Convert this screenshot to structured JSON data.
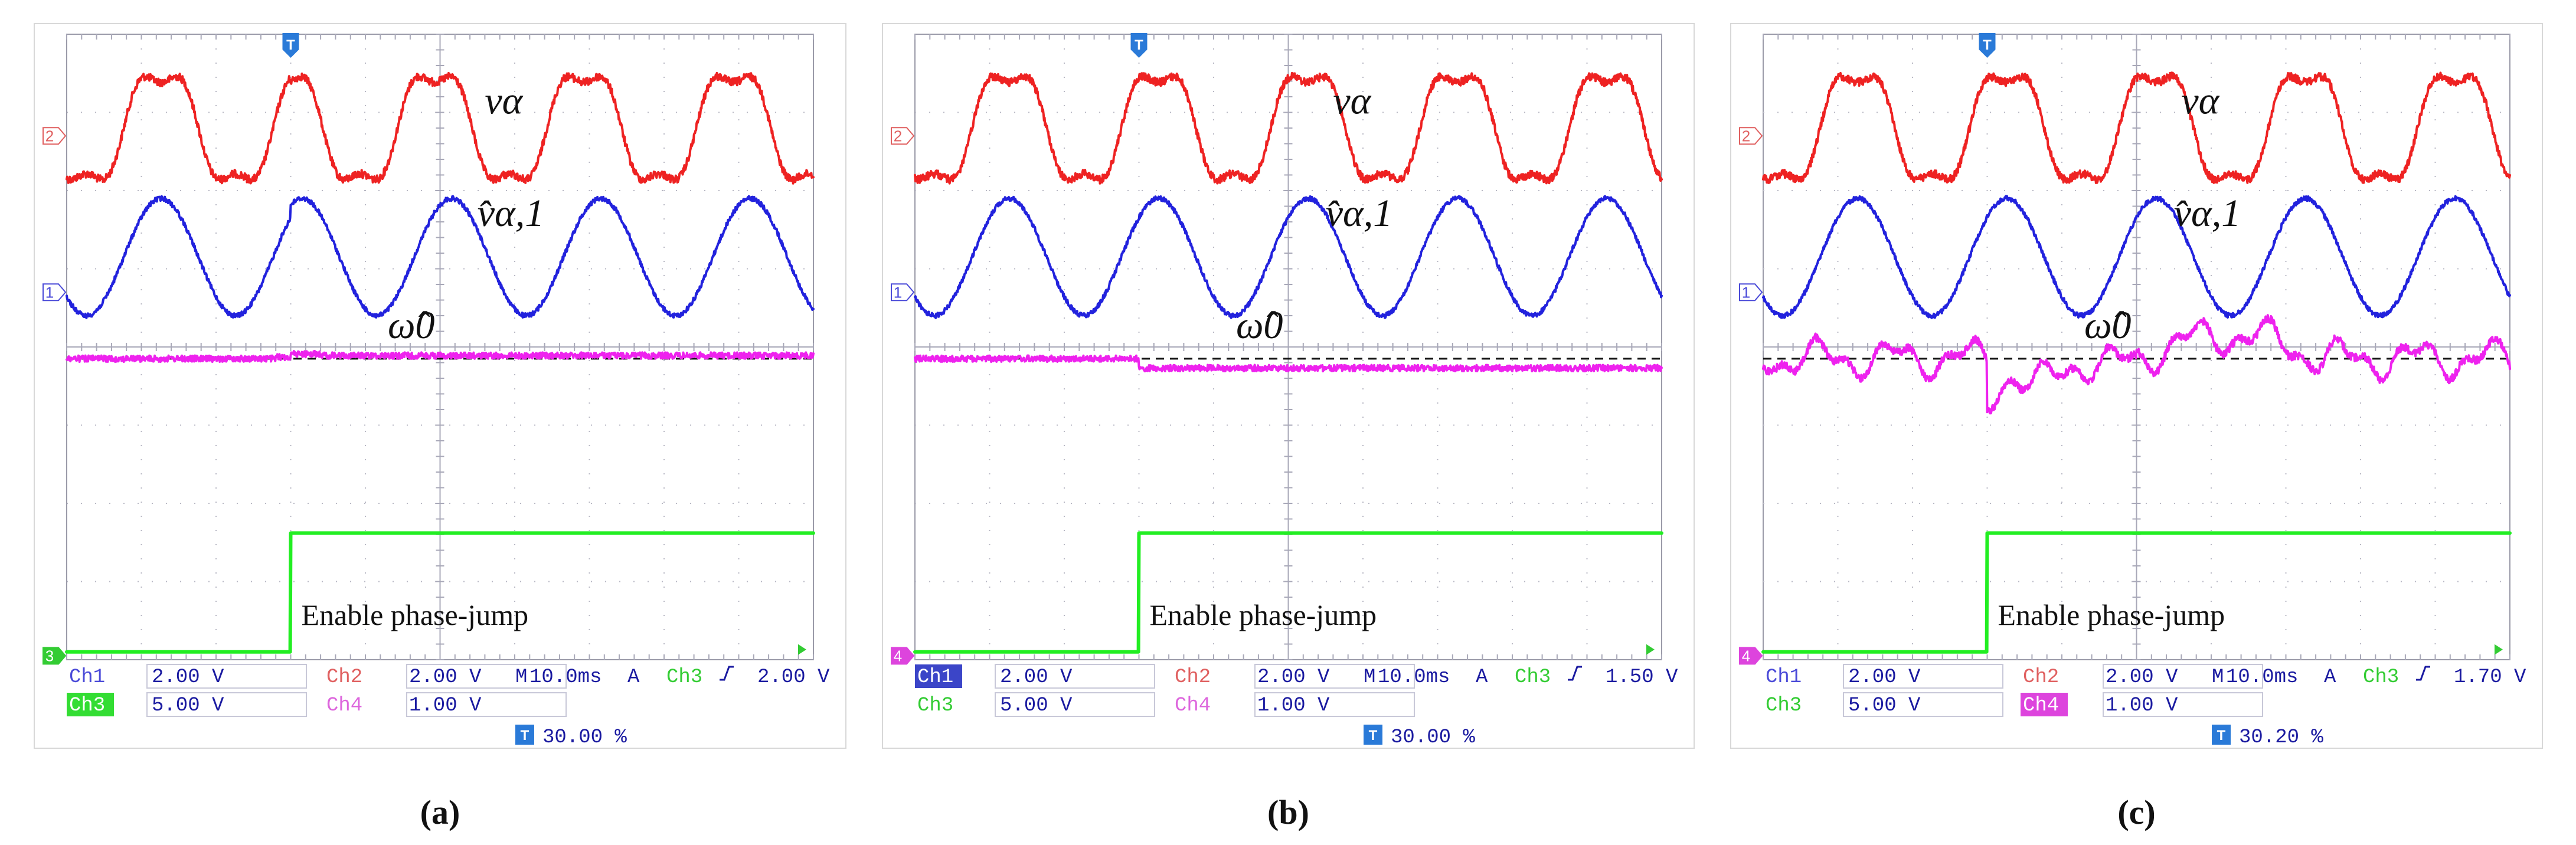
{
  "figure": {
    "panel_count": 3
  },
  "chart_data": [
    {
      "type": "line",
      "panel_label": "(a)",
      "annotations": {
        "v_alpha": "vα",
        "v_hat": "v̂α,1",
        "omega": "ω̂0",
        "event": "Enable phase-jump"
      },
      "markers": {
        "ch2": "2",
        "ch1": "1",
        "bottom": "3",
        "trigger": "T"
      },
      "status": {
        "row1": [
          {
            "label": "Ch1",
            "value": "2.00 V",
            "label_color": "#4a4ad8",
            "highlight": false
          },
          {
            "label": "Ch2",
            "value": "2.00 V",
            "label_color": "#e06060",
            "highlight": false
          },
          {
            "label": "M",
            "value": "10.0ms"
          },
          {
            "label": "A",
            "value": "Ch3",
            "edge": "rising",
            "level": "2.00 V"
          }
        ],
        "row2": [
          {
            "label": "Ch3",
            "value": "5.00 V",
            "label_color": "#ffffff",
            "label_bg": "#33dd33",
            "highlight": true
          },
          {
            "label": "Ch4",
            "value": "1.00 V",
            "label_color": "#dd66dd",
            "highlight": false
          }
        ],
        "trigger_position": "30.00 %"
      },
      "time": {
        "div_ms": 10,
        "divisions": 10,
        "phase_jump_div": 3.0
      },
      "series": [
        {
          "name": "v_alpha",
          "channel": "Ch2",
          "color": "#ee2222",
          "waveform": "flattop",
          "freq_cycles": 5,
          "amplitude_div": 0.75,
          "center_div": 1.2,
          "jump_deg": 60,
          "noise_div": 0.05
        },
        {
          "name": "v_hat_alpha_1",
          "channel": "Ch1",
          "color": "#2222dd",
          "waveform": "sine",
          "freq_cycles": 5,
          "amplitude_div": 0.75,
          "center_div": 2.85,
          "jump_deg": 20,
          "noise_div": 0.03
        },
        {
          "name": "omega_hat_0",
          "channel": "Ch4",
          "color": "#ee22ee",
          "waveform": "dc",
          "level_div": 4.15,
          "shift_div": -0.04,
          "dip_div": 0.02,
          "noise_div": 0.04
        },
        {
          "name": "enable_phase_jump",
          "channel": "Ch3",
          "color": "#22ee22",
          "waveform": "step",
          "low_div": 7.9,
          "high_div": 6.38
        }
      ],
      "reference_level_div": 4.15
    },
    {
      "type": "line",
      "panel_label": "(b)",
      "annotations": {
        "v_alpha": "vα",
        "v_hat": "v̂α,1",
        "omega": "ω̂0",
        "event": "Enable phase-jump"
      },
      "markers": {
        "ch2": "2",
        "ch1": "1",
        "bottom": "4",
        "trigger": "T"
      },
      "status": {
        "row1": [
          {
            "label": "Ch1",
            "value": "2.00 V",
            "label_color": "#ffffff",
            "label_bg": "#3b45c8",
            "highlight": true
          },
          {
            "label": "Ch2",
            "value": "2.00 V",
            "label_color": "#e06060",
            "highlight": false
          },
          {
            "label": "M",
            "value": "10.0ms"
          },
          {
            "label": "A",
            "value": "Ch3",
            "edge": "rising",
            "level": "1.50 V"
          }
        ],
        "row2": [
          {
            "label": "Ch3",
            "value": "5.00 V",
            "label_color": "#33cc33",
            "highlight": false
          },
          {
            "label": "Ch4",
            "value": "1.00 V",
            "label_color": "#dd66dd",
            "highlight": false
          }
        ],
        "trigger_position": "30.00 %"
      },
      "time": {
        "div_ms": 10,
        "divisions": 10,
        "phase_jump_div": 3.0
      },
      "series": [
        {
          "name": "v_alpha",
          "channel": "Ch2",
          "color": "#ee2222",
          "waveform": "flattop",
          "freq_cycles": 5,
          "amplitude_div": 0.75,
          "center_div": 1.2,
          "jump_deg": 0,
          "noise_div": 0.05
        },
        {
          "name": "v_hat_alpha_1",
          "channel": "Ch1",
          "color": "#2222dd",
          "waveform": "sine",
          "freq_cycles": 5,
          "amplitude_div": 0.75,
          "center_div": 2.85,
          "jump_deg": 0,
          "noise_div": 0.03
        },
        {
          "name": "omega_hat_0",
          "channel": "Ch4",
          "color": "#ee22ee",
          "waveform": "dc",
          "level_div": 4.15,
          "shift_div": 0.12,
          "dip_div": 0.0,
          "noise_div": 0.04
        },
        {
          "name": "enable_phase_jump",
          "channel": "Ch3",
          "color": "#22ee22",
          "waveform": "step",
          "low_div": 7.9,
          "high_div": 6.38
        }
      ],
      "reference_level_div": 4.15
    },
    {
      "type": "line",
      "panel_label": "(c)",
      "annotations": {
        "v_alpha": "vα",
        "v_hat": "v̂α,1",
        "omega": "ω̂0",
        "event": "Enable phase-jump"
      },
      "markers": {
        "ch2": "2",
        "ch1": "1",
        "bottom": "4",
        "trigger": "T"
      },
      "status": {
        "row1": [
          {
            "label": "Ch1",
            "value": "2.00 V",
            "label_color": "#4a4ad8",
            "highlight": false
          },
          {
            "label": "Ch2",
            "value": "2.00 V",
            "label_color": "#e06060",
            "highlight": false
          },
          {
            "label": "M",
            "value": "10.0ms"
          },
          {
            "label": "A",
            "value": "Ch3",
            "edge": "rising",
            "level": "1.70 V"
          }
        ],
        "row2": [
          {
            "label": "Ch3",
            "value": "5.00 V",
            "label_color": "#33cc33",
            "highlight": false
          },
          {
            "label": "Ch4",
            "value": "1.00 V",
            "label_color": "#ffffff",
            "label_bg": "#dd44dd",
            "highlight": true
          }
        ],
        "trigger_position": "30.20 %"
      },
      "time": {
        "div_ms": 10,
        "divisions": 10,
        "phase_jump_div": 3.0
      },
      "series": [
        {
          "name": "v_alpha",
          "channel": "Ch2",
          "color": "#ee2222",
          "waveform": "flattop",
          "freq_cycles": 5,
          "amplitude_div": 0.75,
          "center_div": 1.2,
          "jump_deg": 0,
          "noise_div": 0.05
        },
        {
          "name": "v_hat_alpha_1",
          "channel": "Ch1",
          "color": "#2222dd",
          "waveform": "sine",
          "freq_cycles": 5,
          "amplitude_div": 0.75,
          "center_div": 2.85,
          "jump_deg": 0,
          "noise_div": 0.03
        },
        {
          "name": "omega_hat_0",
          "channel": "Ch4",
          "color": "#ee22ee",
          "waveform": "oscillating",
          "level_div": 4.15,
          "dip_div": 0.65,
          "noise_div": 0.05
        },
        {
          "name": "enable_phase_jump",
          "channel": "Ch3",
          "color": "#22ee22",
          "waveform": "step",
          "low_div": 7.9,
          "high_div": 6.38
        }
      ],
      "reference_level_div": 4.15
    }
  ]
}
